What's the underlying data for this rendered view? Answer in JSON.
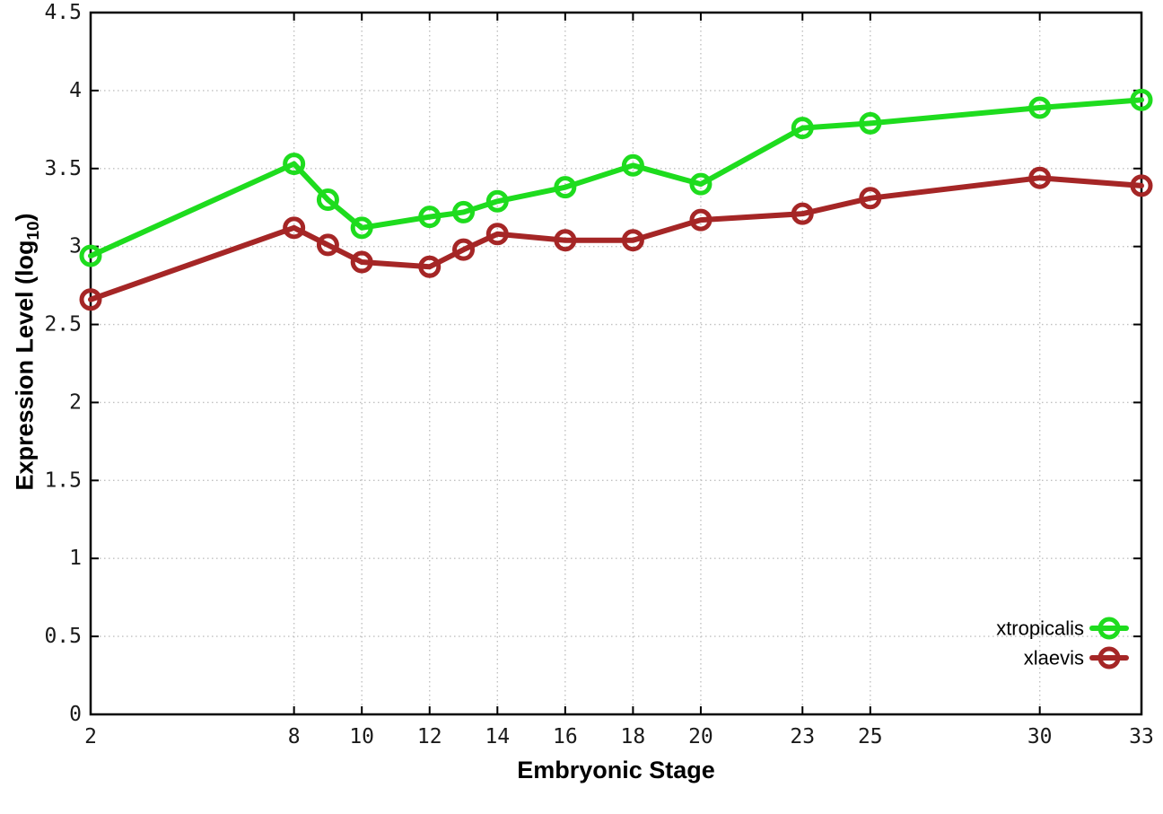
{
  "figure": {
    "background": "#ffffff"
  },
  "chart_data": {
    "type": "line",
    "title": "",
    "xlabel": "Embryonic Stage",
    "ylabel": "Expression Level (log10)",
    "ylabel_parts": {
      "pre": "Expression Level (log",
      "sub": "10",
      "post": ")"
    },
    "xlim": [
      2,
      33
    ],
    "ylim": [
      0,
      4.5
    ],
    "x_ticks": [
      2,
      8,
      10,
      12,
      14,
      16,
      18,
      20,
      23,
      25,
      30,
      33
    ],
    "y_ticks": [
      0,
      0.5,
      1,
      1.5,
      2,
      2.5,
      3,
      3.5,
      4,
      4.5
    ],
    "grid": true,
    "grid_style": "dotted",
    "legend_position": "bottom-right-inside",
    "x": [
      2,
      8,
      9,
      10,
      12,
      13,
      14,
      16,
      18,
      20,
      23,
      25,
      30,
      33
    ],
    "series": [
      {
        "name": "xtropicalis",
        "color": "#1edc1e",
        "marker": "open-circle",
        "values": [
          2.94,
          3.53,
          3.3,
          3.12,
          3.19,
          3.22,
          3.29,
          3.38,
          3.52,
          3.4,
          3.76,
          3.79,
          3.89,
          3.94
        ]
      },
      {
        "name": "xlaevis",
        "color": "#a52626",
        "marker": "open-circle",
        "values": [
          2.66,
          3.12,
          3.01,
          2.9,
          2.87,
          2.98,
          3.08,
          3.04,
          3.04,
          3.17,
          3.21,
          3.31,
          3.44,
          3.39
        ]
      }
    ],
    "axis_color": "#000000",
    "grid_color": "#c0c0c0",
    "tick_label_color": "#1a1a1a"
  }
}
